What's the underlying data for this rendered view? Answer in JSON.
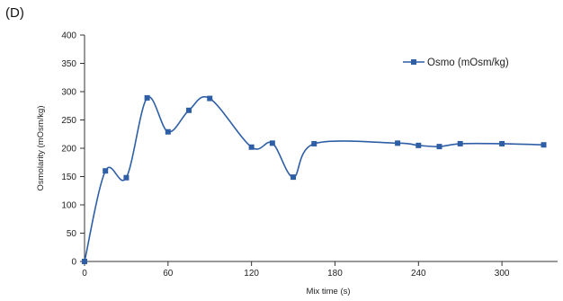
{
  "panel_label": "(D)",
  "chart_data": {
    "type": "line",
    "xlabel": "Mix time (s)",
    "ylabel": "Osmolarity (mOsm/kg)",
    "xlim": [
      0,
      340
    ],
    "ylim": [
      0,
      400
    ],
    "xticks": [
      0,
      60,
      120,
      180,
      240,
      300
    ],
    "yticks": [
      0,
      50,
      100,
      150,
      200,
      250,
      300,
      350,
      400
    ],
    "grid": false,
    "legend_position": "top-right",
    "series": [
      {
        "name": "Osmo (mOsm/kg)",
        "color": "#2e5fa6",
        "marker": "square",
        "smooth": true,
        "x": [
          0,
          15,
          30,
          45,
          60,
          75,
          90,
          120,
          135,
          150,
          165,
          225,
          240,
          255,
          270,
          300,
          330
        ],
        "y": [
          0,
          160,
          148,
          289,
          229,
          267,
          288,
          202,
          209,
          149,
          208,
          209,
          205,
          203,
          208,
          208,
          206
        ]
      }
    ]
  }
}
